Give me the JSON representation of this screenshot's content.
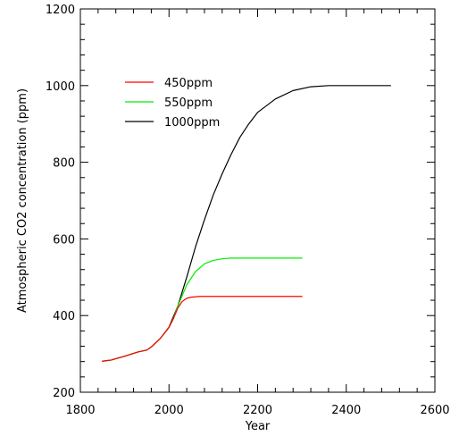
{
  "chart_data": {
    "type": "line",
    "title": "",
    "xlabel": "Year",
    "ylabel": "Atmospheric CO2 concentration (ppm)",
    "xlim": [
      1800,
      2600
    ],
    "ylim": [
      200,
      1200
    ],
    "xticks": [
      1800,
      2000,
      2200,
      2400,
      2600
    ],
    "yticks": [
      200,
      400,
      600,
      800,
      1000,
      1200
    ],
    "x_minor_step": 40,
    "y_minor_step": 40,
    "grid": false,
    "legend_position": "top-left",
    "series": [
      {
        "name": "450ppm",
        "color": "#ff0000",
        "points": [
          [
            1850,
            281
          ],
          [
            1870,
            284
          ],
          [
            1900,
            294
          ],
          [
            1930,
            305
          ],
          [
            1950,
            310
          ],
          [
            1960,
            318
          ],
          [
            1980,
            340
          ],
          [
            2000,
            369
          ],
          [
            2010,
            392
          ],
          [
            2020,
            420
          ],
          [
            2030,
            437
          ],
          [
            2040,
            445
          ],
          [
            2050,
            448
          ],
          [
            2070,
            450
          ],
          [
            2100,
            450
          ],
          [
            2200,
            450
          ],
          [
            2300,
            450
          ]
        ]
      },
      {
        "name": "550ppm",
        "color": "#00ee00",
        "points": [
          [
            1850,
            281
          ],
          [
            1870,
            284
          ],
          [
            1900,
            294
          ],
          [
            1930,
            305
          ],
          [
            1950,
            310
          ],
          [
            1960,
            318
          ],
          [
            1980,
            340
          ],
          [
            2000,
            369
          ],
          [
            2010,
            393
          ],
          [
            2020,
            425
          ],
          [
            2040,
            480
          ],
          [
            2060,
            515
          ],
          [
            2080,
            535
          ],
          [
            2100,
            544
          ],
          [
            2120,
            548
          ],
          [
            2140,
            550
          ],
          [
            2200,
            550
          ],
          [
            2300,
            550
          ]
        ]
      },
      {
        "name": "1000ppm",
        "color": "#000000",
        "points": [
          [
            1850,
            281
          ],
          [
            1870,
            284
          ],
          [
            1900,
            294
          ],
          [
            1930,
            305
          ],
          [
            1950,
            310
          ],
          [
            1960,
            318
          ],
          [
            1980,
            340
          ],
          [
            2000,
            370
          ],
          [
            2020,
            425
          ],
          [
            2040,
            500
          ],
          [
            2060,
            580
          ],
          [
            2080,
            650
          ],
          [
            2100,
            715
          ],
          [
            2120,
            770
          ],
          [
            2140,
            820
          ],
          [
            2160,
            865
          ],
          [
            2180,
            900
          ],
          [
            2200,
            930
          ],
          [
            2240,
            965
          ],
          [
            2280,
            987
          ],
          [
            2320,
            997
          ],
          [
            2360,
            1000
          ],
          [
            2400,
            1000
          ],
          [
            2500,
            1000
          ]
        ]
      }
    ]
  }
}
